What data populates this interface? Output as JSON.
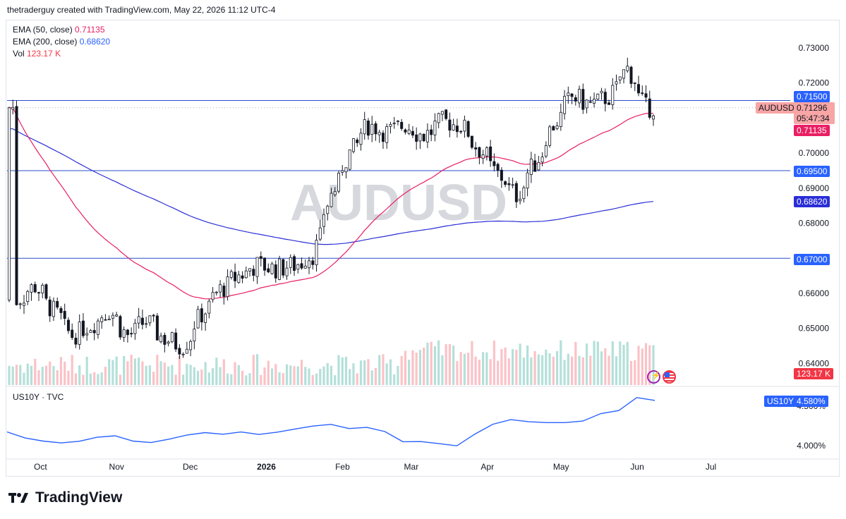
{
  "header": {
    "text": "thetraderguy created with TradingView.com, May 22, 2026 11:12 UTC-4"
  },
  "watermark": "AUDUSD",
  "legend": {
    "ema50": {
      "label": "EMA (50, close)",
      "value": "0.71135",
      "color": "#e91e63"
    },
    "ema200": {
      "label": "EMA (200, close)",
      "value": "0.68620",
      "color": "#2962ff"
    },
    "vol": {
      "label": "Vol",
      "value": "123.17 K",
      "color": "#f23645"
    }
  },
  "sub": {
    "label": "US10Y · TVC",
    "tag_name": "US10Y",
    "tag_value": "4.580%"
  },
  "price_axis": {
    "ticks": [
      "0.73000",
      "0.72000",
      "0.71000",
      "0.70000",
      "0.69000",
      "0.68000",
      "0.66000",
      "0.65000",
      "0.64000"
    ]
  },
  "sub_axis": {
    "ticks": [
      "4.500%",
      "4.000%"
    ]
  },
  "tags": {
    "symbol": "AUDUSD",
    "last_price": "0.71296",
    "countdown": "05:47:34",
    "ema50": "0.71135",
    "ema200": "0.68620",
    "level_07150": "0.71500",
    "level_06950": "0.69500",
    "level_06700": "0.67000",
    "vol": "123.17 K"
  },
  "time_axis": {
    "labels": [
      "Oct",
      "Nov",
      "Dec",
      "2026",
      "Feb",
      "Mar",
      "Apr",
      "May",
      "Jun",
      "Jul"
    ]
  },
  "brand": {
    "name": "TradingView"
  },
  "chart_data": {
    "type": "candlestick",
    "symbol": "AUDUSD",
    "ylim": [
      0.634,
      0.735
    ],
    "horizontal_levels": [
      0.715,
      0.695,
      0.67
    ],
    "close_series": {
      "dates": [
        "2025-09-24",
        "2025-10-01",
        "2025-10-08",
        "2025-10-15",
        "2025-10-22",
        "2025-10-29",
        "2025-11-05",
        "2025-11-12",
        "2025-11-19",
        "2025-11-26",
        "2025-12-03",
        "2025-12-10",
        "2025-12-17",
        "2025-12-24",
        "2025-12-31",
        "2026-01-07",
        "2026-01-14",
        "2026-01-21",
        "2026-01-28",
        "2026-02-04",
        "2026-02-11",
        "2026-02-18",
        "2026-02-25",
        "2026-03-04",
        "2026-03-11",
        "2026-03-18",
        "2026-03-25",
        "2026-04-01",
        "2026-04-08",
        "2026-04-15",
        "2026-04-22",
        "2026-04-29",
        "2026-05-06",
        "2026-05-13",
        "2026-05-20",
        "2026-05-22"
      ],
      "values": [
        0.658,
        0.662,
        0.655,
        0.648,
        0.651,
        0.655,
        0.648,
        0.652,
        0.647,
        0.645,
        0.654,
        0.661,
        0.665,
        0.668,
        0.667,
        0.668,
        0.671,
        0.688,
        0.7,
        0.708,
        0.706,
        0.708,
        0.705,
        0.709,
        0.708,
        0.701,
        0.694,
        0.688,
        0.697,
        0.708,
        0.716,
        0.714,
        0.716,
        0.724,
        0.713,
        0.713
      ]
    },
    "ema50": {
      "last": 0.71135
    },
    "ema200": {
      "last": 0.6862
    },
    "volume": {
      "last": "123.17 K"
    },
    "sub_series": {
      "name": "US10Y",
      "last": "4.580%",
      "ylim": [
        3.85,
        4.7
      ]
    },
    "x_labels": [
      "Oct",
      "Nov",
      "Dec",
      "2026",
      "Feb",
      "Mar",
      "Apr",
      "May",
      "Jun",
      "Jul"
    ]
  }
}
